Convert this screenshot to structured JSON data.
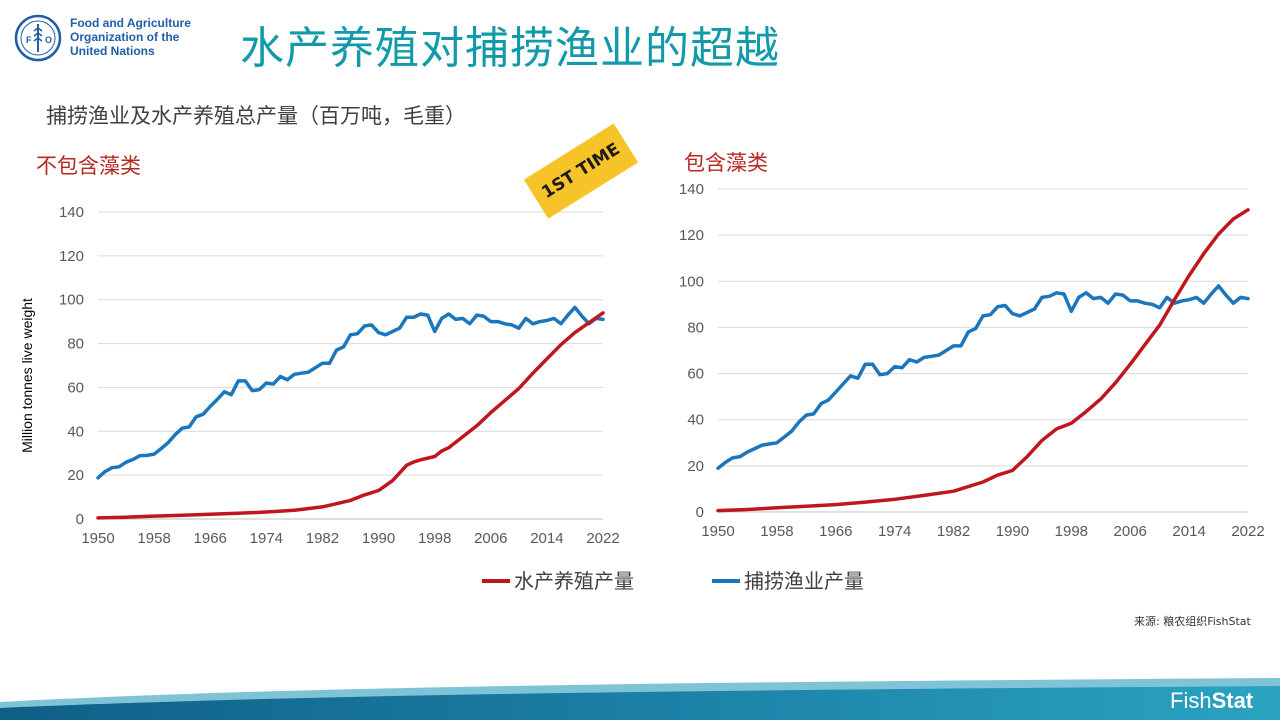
{
  "header": {
    "logo_lines": [
      "Food and Agriculture",
      "Organization of the",
      "United Nations"
    ],
    "title": "水产养殖对捕捞渔业的超越",
    "subtitle": "捕捞渔业及水产养殖总产量（百万吨，毛重）"
  },
  "badge": {
    "text": "1ST TIME",
    "color": "#f6c428"
  },
  "colors": {
    "aquaculture": "#c0161d",
    "capture": "#1b76bc",
    "title": "#129aa8",
    "section": "#b52a25"
  },
  "legend": {
    "aquaculture": "水产养殖产量",
    "capture": "捕捞渔业产量"
  },
  "source": "来源: 粮农组织FishStat",
  "footer": {
    "brand_light": "Fish",
    "brand_bold": "Stat"
  },
  "chart_data": [
    {
      "type": "line",
      "section_label": "不包含藻类",
      "ylabel": "Million tonnes live weight",
      "ylim": [
        0,
        140
      ],
      "yticks": [
        0,
        20,
        40,
        60,
        80,
        100,
        120,
        140
      ],
      "xlim": [
        1950,
        2022
      ],
      "xticks": [
        1950,
        1958,
        1966,
        1974,
        1982,
        1990,
        1998,
        2006,
        2014,
        2022
      ],
      "grid": true,
      "series": [
        {
          "name": "捕捞渔业产量",
          "key": "capture",
          "x": [
            1950,
            1951,
            1952,
            1953,
            1954,
            1955,
            1956,
            1957,
            1958,
            1959,
            1960,
            1961,
            1962,
            1963,
            1964,
            1965,
            1966,
            1967,
            1968,
            1969,
            1970,
            1971,
            1972,
            1973,
            1974,
            1975,
            1976,
            1977,
            1978,
            1979,
            1980,
            1981,
            1982,
            1983,
            1984,
            1985,
            1986,
            1987,
            1988,
            1989,
            1990,
            1991,
            1992,
            1993,
            1994,
            1995,
            1996,
            1997,
            1998,
            1999,
            2000,
            2001,
            2002,
            2003,
            2004,
            2005,
            2006,
            2007,
            2008,
            2009,
            2010,
            2011,
            2012,
            2013,
            2014,
            2015,
            2016,
            2017,
            2018,
            2019,
            2020,
            2021,
            2022
          ],
          "y": [
            18.8,
            21.6,
            23.4,
            23.8,
            25.9,
            27.2,
            28.9,
            29.0,
            29.6,
            32.1,
            34.8,
            38.5,
            41.4,
            42.0,
            46.6,
            47.8,
            51.3,
            54.5,
            58.0,
            56.7,
            63.0,
            63.0,
            58.5,
            59.0,
            62.0,
            61.5,
            65.0,
            63.5,
            66.0,
            66.5,
            67.0,
            69.0,
            71.0,
            71.0,
            77.0,
            78.5,
            84.0,
            84.5,
            88.0,
            88.5,
            85.0,
            84.0,
            85.5,
            87.0,
            92.0,
            92.0,
            93.5,
            93.0,
            85.5,
            91.5,
            93.5,
            91.0,
            91.5,
            89.0,
            93.0,
            92.5,
            90.0,
            90.0,
            89.0,
            88.5,
            87.0,
            91.5,
            89.0,
            90.0,
            90.5,
            91.5,
            89.0,
            93.0,
            96.5,
            92.5,
            89.0,
            91.5,
            91.0
          ]
        },
        {
          "name": "水产养殖产量",
          "key": "aquaculture",
          "x": [
            1950,
            1954,
            1958,
            1962,
            1966,
            1970,
            1974,
            1978,
            1982,
            1986,
            1988,
            1990,
            1992,
            1994,
            1995,
            1996,
            1998,
            1999,
            2000,
            2002,
            2004,
            2006,
            2008,
            2010,
            2012,
            2014,
            2016,
            2018,
            2020,
            2022
          ],
          "y": [
            0.5,
            0.8,
            1.3,
            1.7,
            2.2,
            2.6,
            3.2,
            4.0,
            5.5,
            8.5,
            11.0,
            13.0,
            17.5,
            24.5,
            26.0,
            27.0,
            28.5,
            31.0,
            32.5,
            37.5,
            42.5,
            48.5,
            54.0,
            59.5,
            66.5,
            73.0,
            79.5,
            85.0,
            89.5,
            94.0
          ]
        }
      ]
    },
    {
      "type": "line",
      "section_label": "包含藻类",
      "ylabel": "",
      "ylim": [
        0,
        140
      ],
      "yticks": [
        0,
        20,
        40,
        60,
        80,
        100,
        120,
        140
      ],
      "xlim": [
        1950,
        2022
      ],
      "xticks": [
        1950,
        1958,
        1966,
        1974,
        1982,
        1990,
        1998,
        2006,
        2014,
        2022
      ],
      "grid": true,
      "series": [
        {
          "name": "捕捞渔业产量",
          "key": "capture",
          "x": [
            1950,
            1951,
            1952,
            1953,
            1954,
            1955,
            1956,
            1957,
            1958,
            1959,
            1960,
            1961,
            1962,
            1963,
            1964,
            1965,
            1966,
            1967,
            1968,
            1969,
            1970,
            1971,
            1972,
            1973,
            1974,
            1975,
            1976,
            1977,
            1978,
            1979,
            1980,
            1981,
            1982,
            1983,
            1984,
            1985,
            1986,
            1987,
            1988,
            1989,
            1990,
            1991,
            1992,
            1993,
            1994,
            1995,
            1996,
            1997,
            1998,
            1999,
            2000,
            2001,
            2002,
            2003,
            2004,
            2005,
            2006,
            2007,
            2008,
            2009,
            2010,
            2011,
            2012,
            2013,
            2014,
            2015,
            2016,
            2017,
            2018,
            2019,
            2020,
            2021,
            2022
          ],
          "y": [
            19.0,
            21.5,
            23.5,
            24.0,
            26.0,
            27.5,
            29.0,
            29.5,
            30.0,
            32.5,
            35.0,
            39.0,
            42.0,
            42.5,
            47.0,
            48.5,
            52.0,
            55.5,
            59.0,
            58.0,
            64.0,
            64.0,
            59.5,
            60.0,
            63.0,
            62.5,
            66.0,
            65.0,
            67.0,
            67.5,
            68.0,
            70.0,
            72.0,
            72.0,
            78.0,
            79.5,
            85.0,
            85.5,
            89.0,
            89.5,
            86.0,
            85.0,
            86.5,
            88.0,
            93.0,
            93.5,
            95.0,
            94.5,
            87.0,
            93.0,
            95.0,
            92.5,
            93.0,
            90.5,
            94.5,
            94.0,
            91.5,
            91.5,
            90.5,
            90.0,
            88.5,
            93.0,
            90.5,
            91.5,
            92.0,
            93.0,
            90.5,
            94.5,
            98.0,
            94.0,
            90.5,
            93.0,
            92.5
          ]
        },
        {
          "name": "水产养殖产量",
          "key": "aquaculture",
          "x": [
            1950,
            1954,
            1958,
            1962,
            1966,
            1970,
            1974,
            1978,
            1982,
            1986,
            1988,
            1990,
            1992,
            1994,
            1996,
            1998,
            2000,
            2002,
            2004,
            2006,
            2008,
            2010,
            2012,
            2014,
            2016,
            2018,
            2020,
            2022
          ],
          "y": [
            0.6,
            1.1,
            1.8,
            2.5,
            3.2,
            4.3,
            5.5,
            7.2,
            9.0,
            13.0,
            16.0,
            18.0,
            24.0,
            31.0,
            36.0,
            38.5,
            43.5,
            49.0,
            56.0,
            64.0,
            72.5,
            81.0,
            92.0,
            102.5,
            112.0,
            120.5,
            127.0,
            131.0
          ]
        }
      ]
    }
  ]
}
